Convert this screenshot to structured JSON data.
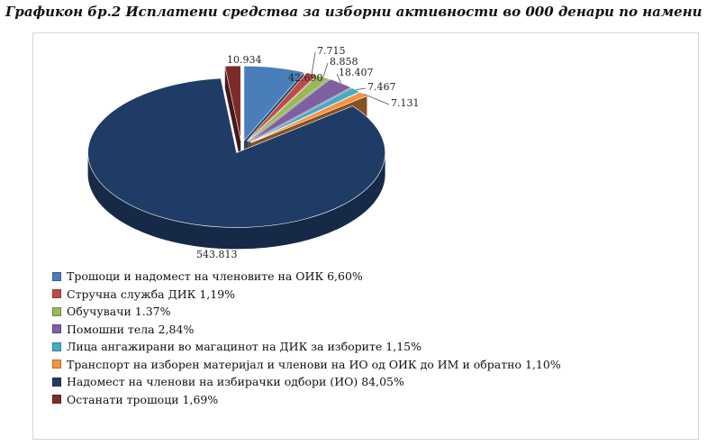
{
  "title": "Графикон бр.2 Исплатени средства за изборни активности во 000 денари по намени",
  "chart_data": {
    "type": "pie",
    "title": "Графикон бр.2 Исплатени средства за изборни активности во 000 денари по намени",
    "categories": [
      "Трошоци и надомест на членовите на ОИК 6,60%",
      "Стручна служба ДИК 1,19%",
      "Обучувачи 1.37%",
      "Помошни тела 2,84%",
      "Лица ангажирани во магацинот на ДИК за изборите 1,15%",
      "Транспорт на изборен материјал и членови на ИО од ОИК до ИМ и обратно 1,10%",
      "Надомест на членови на избирачки одбори (ИО) 84,05%",
      "Останати трошоци 1,69%"
    ],
    "values": [
      42.69,
      7.715,
      8.858,
      18.407,
      7.467,
      7.131,
      543.813,
      10.934
    ],
    "data_labels": [
      "42.690",
      "7.715",
      "8.858",
      "18.407",
      "7.467",
      "7.131",
      "543.813",
      "10.934"
    ],
    "colors": [
      "#4a7ebb",
      "#be4b48",
      "#98b954",
      "#7d60a0",
      "#46aac5",
      "#f69240",
      "#1f3c66",
      "#7b2c2a"
    ],
    "legend_position": "bottom-left",
    "style": "3d-exploded"
  }
}
